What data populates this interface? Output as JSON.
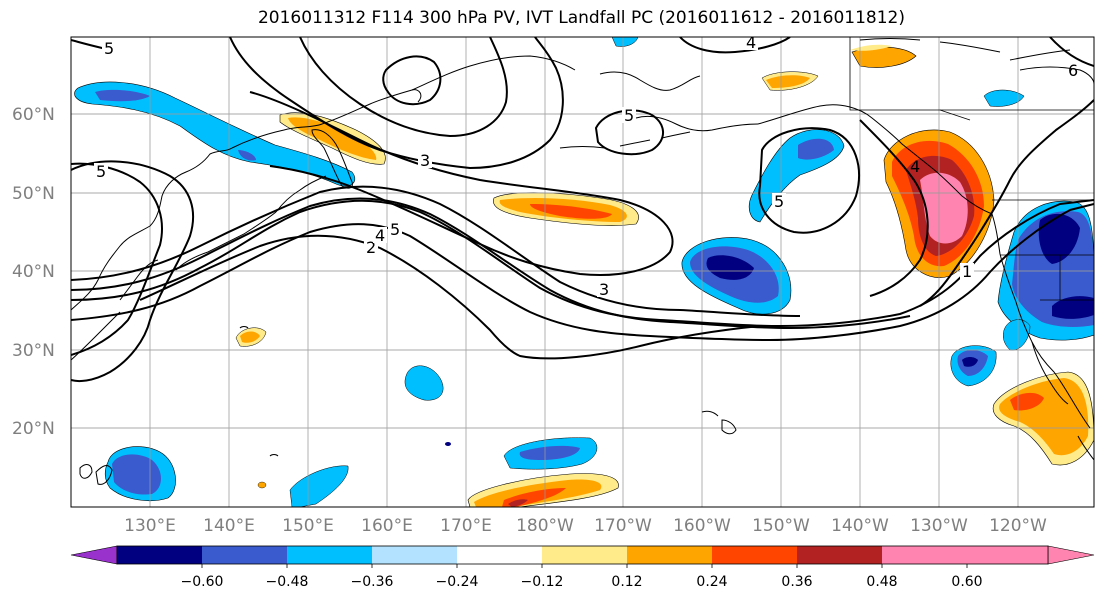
{
  "title": "2016011312 F114 300 hPa PV, IVT Landfall PC (2016011612 - 2016011812)",
  "map": {
    "latitude_labels": [
      "60°N",
      "50°N",
      "40°N",
      "30°N",
      "20°N"
    ],
    "longitude_labels": [
      "130°E",
      "140°E",
      "150°E",
      "160°E",
      "170°E",
      "180°W",
      "170°W",
      "160°W",
      "150°W",
      "140°W",
      "130°W",
      "120°W"
    ],
    "pv_contour_labels": [
      "5",
      "5",
      "5",
      "3",
      "3",
      "5",
      "4",
      "5",
      "2",
      "4",
      "4",
      "1",
      "6"
    ]
  },
  "colorbar": {
    "colors": [
      "#9932CC",
      "#000080",
      "#3A5BCE",
      "#00BFFF",
      "#B2E2FF",
      "#FFFFFF",
      "#FFEB8A",
      "#FFA500",
      "#FF4500",
      "#B22222",
      "#FF85B0"
    ],
    "tick_labels": [
      "−0.60",
      "−0.48",
      "−0.36",
      "−0.24",
      "−0.12",
      "0.12",
      "0.24",
      "0.36",
      "0.48",
      "0.60"
    ]
  }
}
